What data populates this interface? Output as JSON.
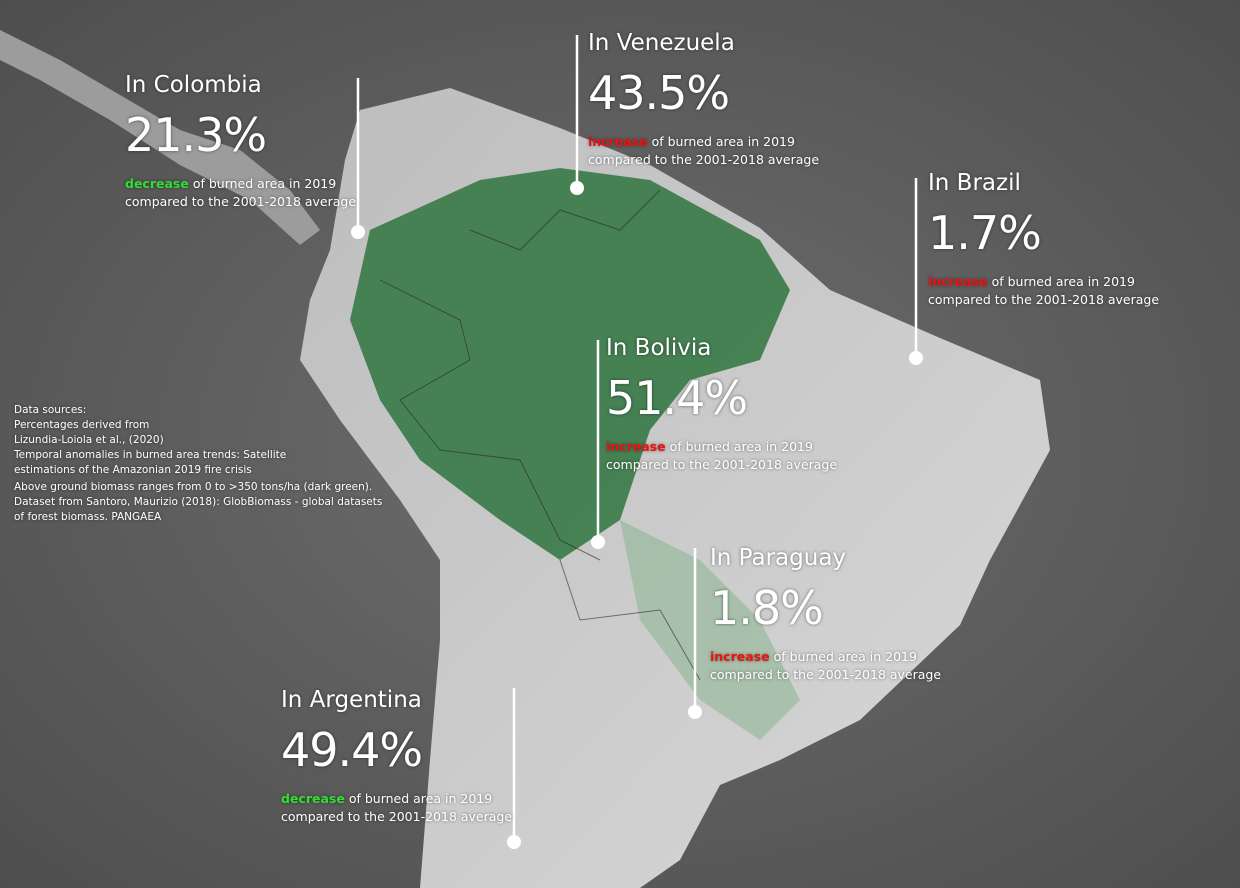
{
  "callouts": [
    {
      "title": "In Colombia",
      "figure": "21.3%",
      "change": "decrease",
      "line1": "of burned area in 2019",
      "line2": "compared to the 2001-2018 average"
    },
    {
      "title": "In Venezuela",
      "figure": "43.5%",
      "change": "increase",
      "line1": "of burned area in 2019",
      "line2": "compared to the 2001-2018 average"
    },
    {
      "title": "In Brazil",
      "figure": "1.7%",
      "change": "increase",
      "line1": "of burned area in 2019",
      "line2": "compared to the 2001-2018 average"
    },
    {
      "title": "In Bolivia",
      "figure": "51.4%",
      "change": "increase",
      "line1": "of burned area in 2019",
      "line2": "compared to the 2001-2018 average"
    },
    {
      "title": "In Paraguay",
      "figure": "1.8%",
      "change": "increase",
      "line1": "of burned area in 2019",
      "line2": "compared to the 2001-2018 average"
    },
    {
      "title": "In Argentina",
      "figure": "49.4%",
      "change": "decrease",
      "line1": "of burned area in 2019",
      "line2": "compared to the 2001-2018 average"
    }
  ],
  "sources": [
    "Data sources:",
    "Percentages derived from",
    "Lizundia-Loiola et al., (2020)",
    "Temporal anomalies in burned area trends: Satellite",
    "estimations of the Amazonian 2019 fire crisis",
    "Above ground biomass ranges from 0 to >350 tons/ha (dark green).",
    "Dataset from Santoro, Maurizio (2018): GlobBiomass - global datasets",
    "of forest biomass. PANGAEA"
  ]
}
